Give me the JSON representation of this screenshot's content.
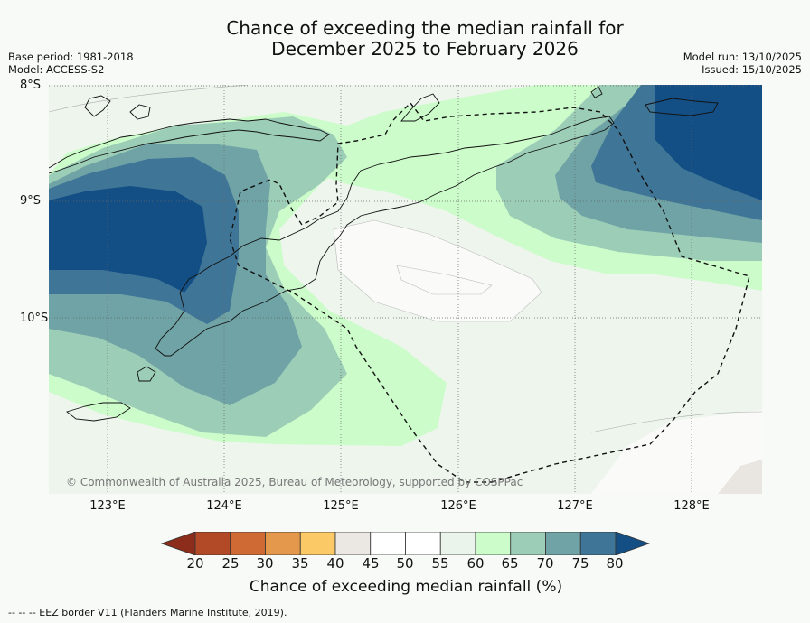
{
  "header": {
    "title_line1": "Chance of exceeding the median rainfall for",
    "title_line2": "December 2025 to February 2026",
    "base_period": "Base period: 1981-2018",
    "model": "Model: ACCESS-S2",
    "model_run": "Model run: 13/10/2025",
    "issued": "Issued: 15/10/2025"
  },
  "map": {
    "lat_labels": [
      "8°S",
      "9°S",
      "10°S"
    ],
    "lon_labels": [
      "123°E",
      "124°E",
      "125°E",
      "126°E",
      "127°E",
      "128°E"
    ],
    "copyright": "© Commonwealth of Australia 2025, Bureau of Meteorology, supported by COSPPac"
  },
  "colorbar": {
    "ticks": [
      "20",
      "25",
      "30",
      "35",
      "40",
      "45",
      "50",
      "55",
      "60",
      "65",
      "70",
      "75",
      "80"
    ],
    "colors": [
      "#8c2d1b",
      "#b24a28",
      "#cf6a35",
      "#e3984b",
      "#fbc966",
      "#ebe8e3",
      "#ffffff",
      "#ffffff",
      "#eaf4ea",
      "#ccfcca",
      "#9ccdb7",
      "#6fa3a5",
      "#3f7596",
      "#134f85"
    ],
    "label": "Chance of exceeding median rainfall (%)"
  },
  "legend": {
    "eez": "--  --  -- EEZ border V11 (Flanders Marine Institute, 2019)."
  },
  "colors": {
    "p55_60": "#edf5ed",
    "p60_65": "#ccfcca",
    "p65_70": "#9ccdb7",
    "p70_75": "#6fa3a5",
    "p75_80": "#3f7596",
    "p80": "#134f85"
  }
}
